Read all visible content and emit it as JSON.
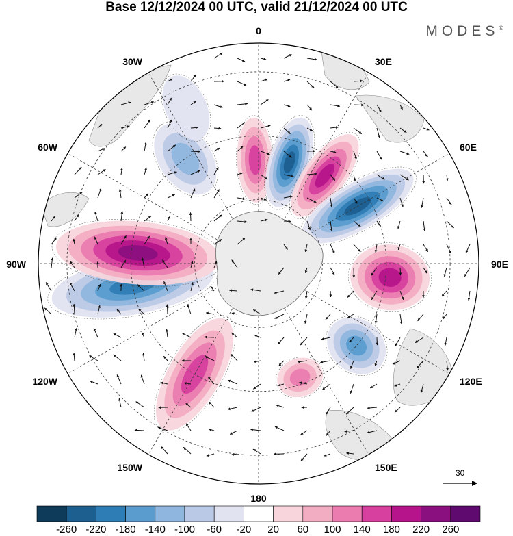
{
  "title": "Base 12/12/2024 00 UTC, valid 21/12/2024 00 UTC",
  "brand": "MODES",
  "brand_mark": "©",
  "longitude_labels": {
    "lon_0": "0",
    "lon_30e": "30E",
    "lon_60e": "60E",
    "lon_90e": "90E",
    "lon_120e": "120E",
    "lon_150e": "150E",
    "lon_180": "180",
    "lon_150w": "150W",
    "lon_120w": "120W",
    "lon_90w": "90W",
    "lon_60w": "60W",
    "lon_30w": "30W"
  },
  "reference_vector": {
    "label": "30"
  },
  "colorbar": {
    "labels": [
      "-260",
      "-220",
      "-180",
      "-140",
      "-100",
      "-60",
      "-20",
      "20",
      "60",
      "100",
      "140",
      "180",
      "220",
      "260"
    ],
    "colors": [
      "#0f3b5a",
      "#1d5f8f",
      "#2f7db5",
      "#5b9ccf",
      "#8fb6de",
      "#bac9e6",
      "#e1e3f1",
      "#ffffff",
      "#f8d5dc",
      "#f3adc3",
      "#ea7cb0",
      "#d7409e",
      "#b6148a",
      "#8a0f7f",
      "#5e0a6f"
    ]
  },
  "map": {
    "projection": "south polar stereographic",
    "field": "filled contours with wind vectors",
    "anomaly_centers": [
      {
        "name": "lobe-0",
        "lon": -2,
        "value": 150
      },
      {
        "name": "lobe-1",
        "lon": 17,
        "value": -220
      },
      {
        "name": "lobe-2",
        "lon": 37,
        "value": 210
      },
      {
        "name": "lobe-3",
        "lon": 60,
        "value": -250
      },
      {
        "name": "lobe-4",
        "lon": 96,
        "value": 200
      },
      {
        "name": "lobe-5",
        "lon": 130,
        "value": -150
      },
      {
        "name": "lobe-6",
        "lon": 160,
        "value": 110
      },
      {
        "name": "lobe-7",
        "lon": -150,
        "value": 150
      },
      {
        "name": "lobe-8",
        "lon": -100,
        "value": -200
      },
      {
        "name": "lobe-9",
        "lon": -85,
        "value": 240
      },
      {
        "name": "lobe-10",
        "lon": -35,
        "value": -110
      },
      {
        "name": "lobe-11",
        "lon": -25,
        "value": -50
      }
    ]
  }
}
